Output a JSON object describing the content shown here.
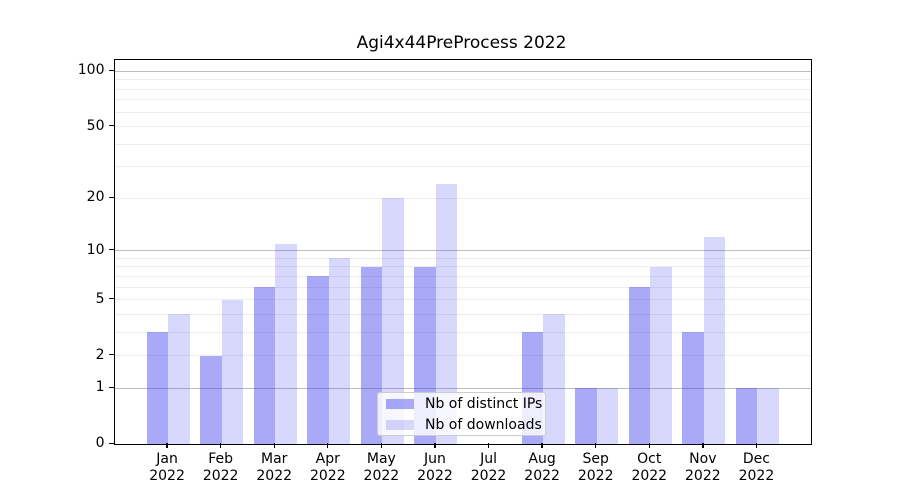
{
  "title": "Agi4x44PreProcess 2022",
  "chart_data": {
    "type": "bar",
    "title": "Agi4x44PreProcess 2022",
    "categories": [
      "Jan 2022",
      "Feb 2022",
      "Mar 2022",
      "Apr 2022",
      "May 2022",
      "Jun 2022",
      "Jul 2022",
      "Aug 2022",
      "Sep 2022",
      "Oct 2022",
      "Nov 2022",
      "Dec 2022"
    ],
    "series": [
      {
        "name": "Nb of distinct IPs",
        "color": "rgba(60,60,240,0.44)",
        "values": [
          3,
          2,
          6,
          7,
          8,
          8,
          0,
          3,
          1,
          6,
          3,
          1
        ]
      },
      {
        "name": "Nb of downloads",
        "color": "rgba(60,60,240,0.20)",
        "values": [
          4,
          5,
          11,
          9,
          20,
          24,
          0,
          4,
          1,
          8,
          12,
          1
        ]
      }
    ],
    "xlabel": "",
    "ylabel": "",
    "yscale": "log1p",
    "ylim": [
      0,
      116
    ],
    "y_ticks": [
      0,
      1,
      2,
      5,
      10,
      20,
      50,
      100
    ],
    "major_gridlines": [
      1,
      10,
      100
    ],
    "minor_gridlines": [
      2,
      3,
      4,
      5,
      6,
      7,
      8,
      9,
      20,
      30,
      40,
      50,
      60,
      70,
      80,
      90
    ],
    "grid": true,
    "legend_position": "lower center"
  },
  "colors": {
    "bar_distinct_ips": "rgba(60,60,240,0.44)",
    "bar_downloads": "rgba(60,60,240,0.20)",
    "major_grid": "#bdbdbd",
    "minor_grid": "#ececec",
    "axis": "#000000",
    "legend_border": "#cccccc"
  }
}
